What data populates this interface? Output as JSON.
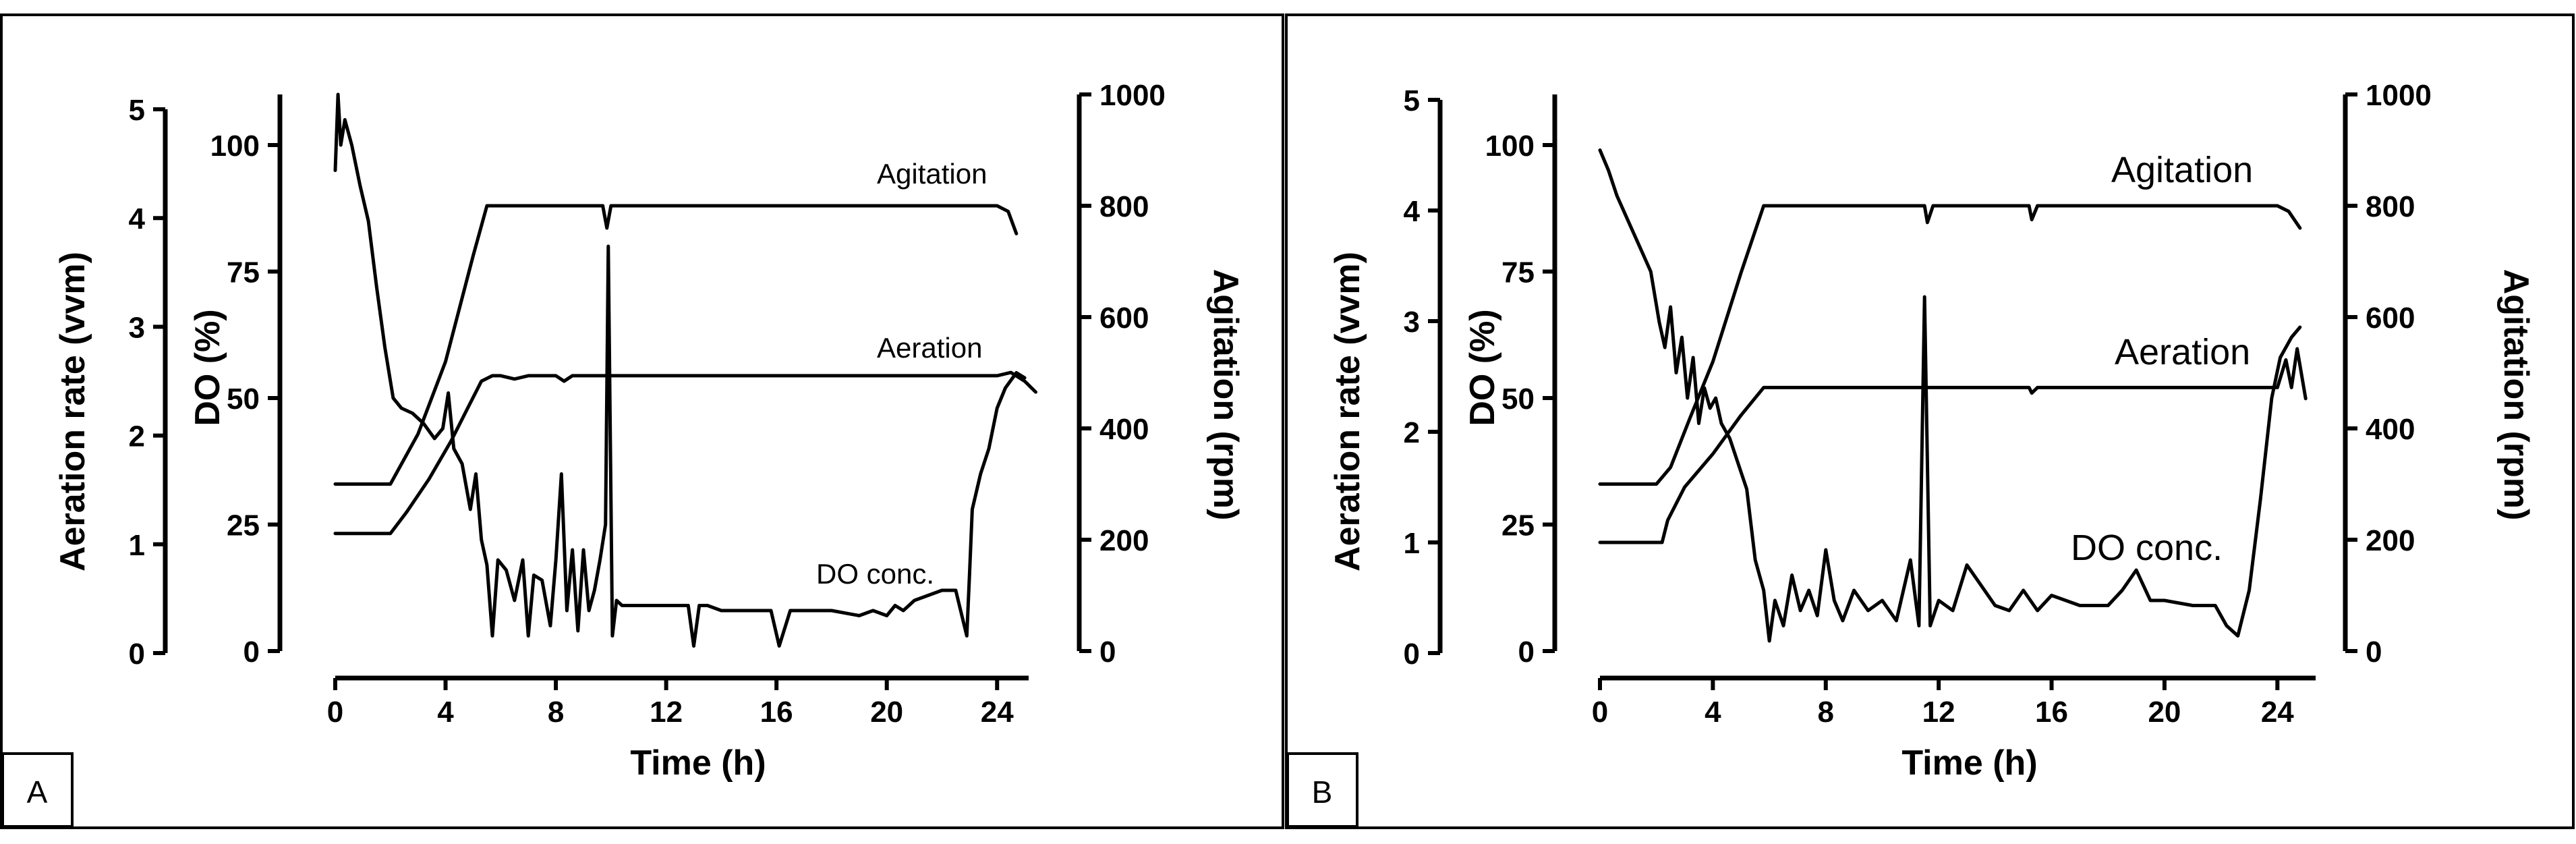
{
  "chart_data": [
    {
      "type": "line",
      "panel_label": "A",
      "xlabel": "Time (h)",
      "ylabel_outer": "Aeration rate (vvm)",
      "ylabel_inner": "DO (%)",
      "ylabel_right": "Agitation (rpm)",
      "xlim": [
        0,
        26
      ],
      "x_ticks": [
        0,
        4,
        8,
        12,
        16,
        20,
        24
      ],
      "x_tick_labels": [
        "0",
        "4",
        "8",
        "12",
        "16",
        "20",
        "24"
      ],
      "aeration_lim": [
        0,
        5
      ],
      "aeration_ticks": [
        0,
        1,
        2,
        3,
        4,
        5
      ],
      "aeration_tick_labels": [
        "0",
        "1",
        "2",
        "3",
        "4",
        "5"
      ],
      "do_lim": [
        0,
        110
      ],
      "do_ticks": [
        0,
        25,
        50,
        75,
        100
      ],
      "do_tick_labels": [
        "0",
        "25",
        "50",
        "75",
        "100"
      ],
      "agitation_lim": [
        0,
        1000
      ],
      "agitation_ticks": [
        0,
        200,
        400,
        600,
        800,
        1000
      ],
      "agitation_tick_labels": [
        "0",
        "200",
        "400",
        "600",
        "800",
        "1000"
      ],
      "annotations": {
        "agitation": "Agitation",
        "aeration": "Aeration",
        "do": "DO conc."
      },
      "series": [
        {
          "name": "Agitation",
          "axis": "agitation",
          "x": [
            0,
            0.5,
            1.2,
            2.0,
            3.0,
            4.0,
            5.0,
            5.5,
            9.7,
            9.85,
            10.0,
            16.0,
            20.0,
            24.0,
            24.4,
            24.7
          ],
          "y": [
            300,
            300,
            300,
            300,
            390,
            520,
            710,
            800,
            800,
            760,
            800,
            800,
            800,
            800,
            790,
            750
          ]
        },
        {
          "name": "Aeration",
          "axis": "aeration",
          "x": [
            0,
            0.5,
            1.2,
            2.0,
            2.6,
            3.4,
            4.2,
            4.8,
            5.3,
            5.7,
            6.0,
            6.5,
            7.0,
            8.0,
            8.3,
            8.6,
            9.0,
            16.0,
            22.0,
            24.0,
            24.5,
            25.0,
            25.4
          ],
          "y": [
            1.1,
            1.1,
            1.1,
            1.1,
            1.3,
            1.6,
            1.95,
            2.25,
            2.5,
            2.55,
            2.55,
            2.52,
            2.55,
            2.55,
            2.5,
            2.55,
            2.55,
            2.55,
            2.55,
            2.55,
            2.58,
            2.5,
            2.4
          ]
        },
        {
          "name": "DO conc.",
          "axis": "do",
          "x": [
            0,
            0.1,
            0.2,
            0.35,
            0.6,
            0.9,
            1.2,
            1.5,
            1.8,
            2.1,
            2.4,
            2.8,
            3.2,
            3.6,
            3.9,
            4.1,
            4.3,
            4.6,
            4.9,
            5.1,
            5.3,
            5.5,
            5.7,
            5.9,
            6.2,
            6.5,
            6.8,
            7.0,
            7.2,
            7.5,
            7.8,
            8.0,
            8.2,
            8.4,
            8.6,
            8.8,
            9.0,
            9.2,
            9.4,
            9.6,
            9.8,
            9.9,
            10.05,
            10.2,
            10.4,
            11.0,
            12.0,
            12.5,
            12.8,
            13.0,
            13.2,
            13.5,
            14.0,
            15.0,
            15.8,
            16.1,
            16.5,
            17.0,
            18.0,
            19.0,
            19.5,
            20.0,
            20.3,
            20.6,
            21.0,
            21.5,
            22.0,
            22.5,
            22.9,
            23.0,
            23.1,
            23.4,
            23.7,
            24.0,
            24.3,
            24.7,
            25.0
          ],
          "y": [
            95,
            110,
            100,
            105,
            100,
            92,
            85,
            72,
            60,
            50,
            48,
            47,
            45,
            42,
            44,
            51,
            40,
            37,
            28,
            35,
            22,
            17,
            3,
            18,
            16,
            10,
            18,
            3,
            15,
            14,
            5,
            18,
            35,
            8,
            20,
            4,
            20,
            8,
            12,
            18,
            25,
            80,
            3,
            10,
            9,
            9,
            9,
            9,
            9,
            1,
            9,
            9,
            8,
            8,
            8,
            1,
            8,
            8,
            8,
            7,
            8,
            7,
            9,
            8,
            10,
            11,
            12,
            12,
            3,
            15,
            28,
            35,
            40,
            48,
            52,
            55,
            54
          ]
        }
      ]
    },
    {
      "type": "line",
      "panel_label": "B",
      "xlabel": "Time (h)",
      "ylabel_outer": "Aeration rate (vvm)",
      "ylabel_inner": "DO (%)",
      "ylabel_right": "Agitation (rpm)",
      "xlim": [
        0,
        26
      ],
      "x_ticks": [
        0,
        4,
        8,
        12,
        16,
        20,
        24
      ],
      "x_tick_labels": [
        "0",
        "4",
        "8",
        "12",
        "16",
        "20",
        "24"
      ],
      "aeration_lim": [
        0,
        5
      ],
      "aeration_ticks": [
        0,
        1,
        2,
        3,
        4,
        5
      ],
      "aeration_tick_labels": [
        "0",
        "1",
        "2",
        "3",
        "4",
        "5"
      ],
      "do_lim": [
        0,
        110
      ],
      "do_ticks": [
        0,
        25,
        50,
        75,
        100
      ],
      "do_tick_labels": [
        "0",
        "25",
        "50",
        "75",
        "100"
      ],
      "agitation_lim": [
        0,
        1000
      ],
      "agitation_ticks": [
        0,
        200,
        400,
        600,
        800,
        1000
      ],
      "agitation_tick_labels": [
        "0",
        "200",
        "400",
        "600",
        "800",
        "1000"
      ],
      "annotations": {
        "agitation": "Agitation",
        "aeration": "Aeration",
        "do": "DO conc."
      },
      "series": [
        {
          "name": "Agitation",
          "axis": "agitation",
          "x": [
            0,
            1.0,
            2.0,
            2.5,
            3.2,
            4.0,
            5.0,
            5.8,
            11.5,
            11.6,
            11.8,
            15.2,
            15.3,
            15.5,
            24.0,
            24.4,
            24.8
          ],
          "y": [
            300,
            300,
            300,
            330,
            420,
            520,
            680,
            800,
            800,
            770,
            800,
            800,
            775,
            800,
            800,
            790,
            760
          ]
        },
        {
          "name": "Aeration",
          "axis": "aeration",
          "x": [
            0,
            1.0,
            2.2,
            2.4,
            3.0,
            4.0,
            5.0,
            5.8,
            11.5,
            15.2,
            15.3,
            15.5,
            24.0,
            24.3,
            24.5,
            24.7,
            25.0
          ],
          "y": [
            1.0,
            1.0,
            1.0,
            1.2,
            1.5,
            1.8,
            2.15,
            2.4,
            2.4,
            2.4,
            2.35,
            2.4,
            2.4,
            2.65,
            2.4,
            2.75,
            2.3
          ]
        },
        {
          "name": "DO conc.",
          "axis": "do",
          "x": [
            0,
            0.3,
            0.6,
            1.0,
            1.4,
            1.8,
            2.1,
            2.3,
            2.5,
            2.7,
            2.9,
            3.1,
            3.3,
            3.5,
            3.7,
            3.9,
            4.1,
            4.3,
            4.6,
            4.9,
            5.2,
            5.5,
            5.8,
            6.0,
            6.2,
            6.5,
            6.8,
            7.1,
            7.4,
            7.7,
            8.0,
            8.3,
            8.6,
            9.0,
            9.5,
            10.0,
            10.5,
            11.0,
            11.3,
            11.5,
            11.7,
            12.0,
            12.5,
            13.0,
            14.0,
            14.5,
            15.0,
            15.5,
            16.0,
            17.0,
            18.0,
            18.5,
            19.0,
            19.5,
            20.0,
            21.0,
            21.8,
            22.2,
            22.6,
            23.0,
            23.4,
            23.8,
            24.1,
            24.5,
            24.8
          ],
          "y": [
            99,
            95,
            90,
            85,
            80,
            75,
            65,
            60,
            68,
            55,
            62,
            50,
            58,
            45,
            52,
            48,
            50,
            45,
            42,
            37,
            32,
            18,
            12,
            2,
            10,
            5,
            15,
            8,
            12,
            7,
            20,
            10,
            6,
            12,
            8,
            10,
            6,
            18,
            5,
            70,
            5,
            10,
            8,
            17,
            9,
            8,
            12,
            8,
            11,
            9,
            9,
            12,
            16,
            10,
            10,
            9,
            9,
            5,
            3,
            12,
            30,
            50,
            58,
            62,
            64
          ]
        }
      ]
    }
  ]
}
